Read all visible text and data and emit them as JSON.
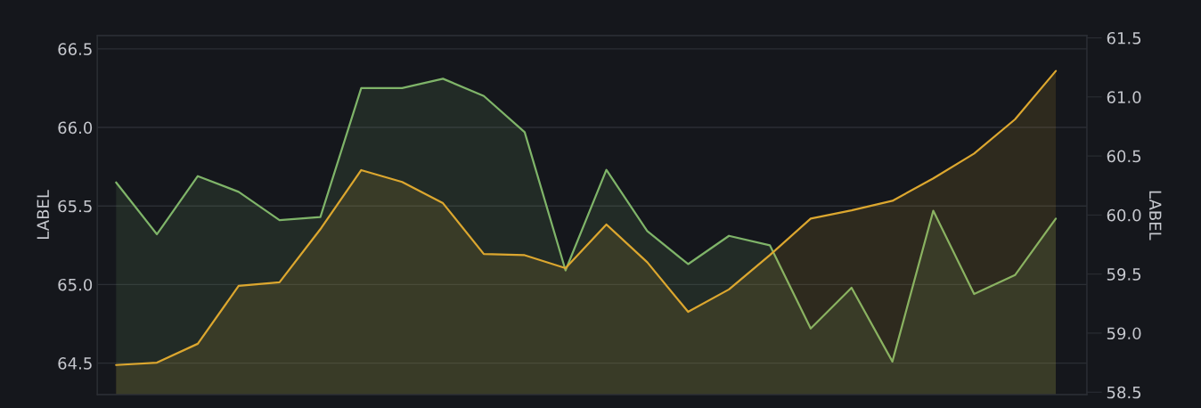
{
  "chart_data": {
    "type": "area",
    "ylabel": "LABEL",
    "y2label": "LABEL",
    "categories": [
      null,
      null,
      null,
      null,
      null,
      null,
      null,
      null,
      null,
      null,
      null,
      null,
      null,
      null,
      null,
      null,
      null,
      null,
      null,
      null,
      null,
      null,
      null,
      null
    ],
    "series": [
      {
        "color": "#7fb469",
        "values": [
          65.65,
          65.32,
          65.69,
          65.59,
          65.41,
          65.43,
          66.25,
          66.25,
          66.31,
          66.2,
          65.97,
          65.09,
          65.73,
          65.34,
          65.13,
          65.31,
          65.25,
          64.72,
          64.98,
          64.51,
          65.47,
          64.94,
          65.06,
          65.42
        ]
      },
      {
        "color": "#dca72f",
        "axis": "y2",
        "values": [
          58.73,
          58.75,
          58.91,
          59.4,
          59.43,
          59.88,
          60.38,
          60.28,
          60.1,
          59.67,
          59.66,
          59.55,
          59.92,
          59.6,
          59.18,
          59.37,
          59.66,
          59.97,
          60.04,
          60.12,
          60.31,
          60.52,
          60.81,
          61.22
        ]
      }
    ],
    "ylim": [
      64.3,
      66.585
    ],
    "yticks": [
      {
        "value": 64.5,
        "label": "64.5"
      },
      {
        "value": 65.0,
        "label": "65.0"
      },
      {
        "value": 65.5,
        "label": "65.5"
      },
      {
        "value": 66.0,
        "label": "66.0"
      },
      {
        "value": 66.5,
        "label": "66.5"
      }
    ],
    "y2lim": [
      58.48,
      61.52
    ],
    "y2ticks": [
      {
        "value": 58.5,
        "label": "58.5"
      },
      {
        "value": 59.0,
        "label": "59.0"
      },
      {
        "value": 59.5,
        "label": "59.5"
      },
      {
        "value": 60.0,
        "label": "60.0"
      },
      {
        "value": 60.5,
        "label": "60.5"
      },
      {
        "value": 61.0,
        "label": "61.0"
      },
      {
        "value": 61.5,
        "label": "61.5"
      }
    ],
    "grid": "y",
    "marker": "none",
    "line_style": "solid"
  }
}
